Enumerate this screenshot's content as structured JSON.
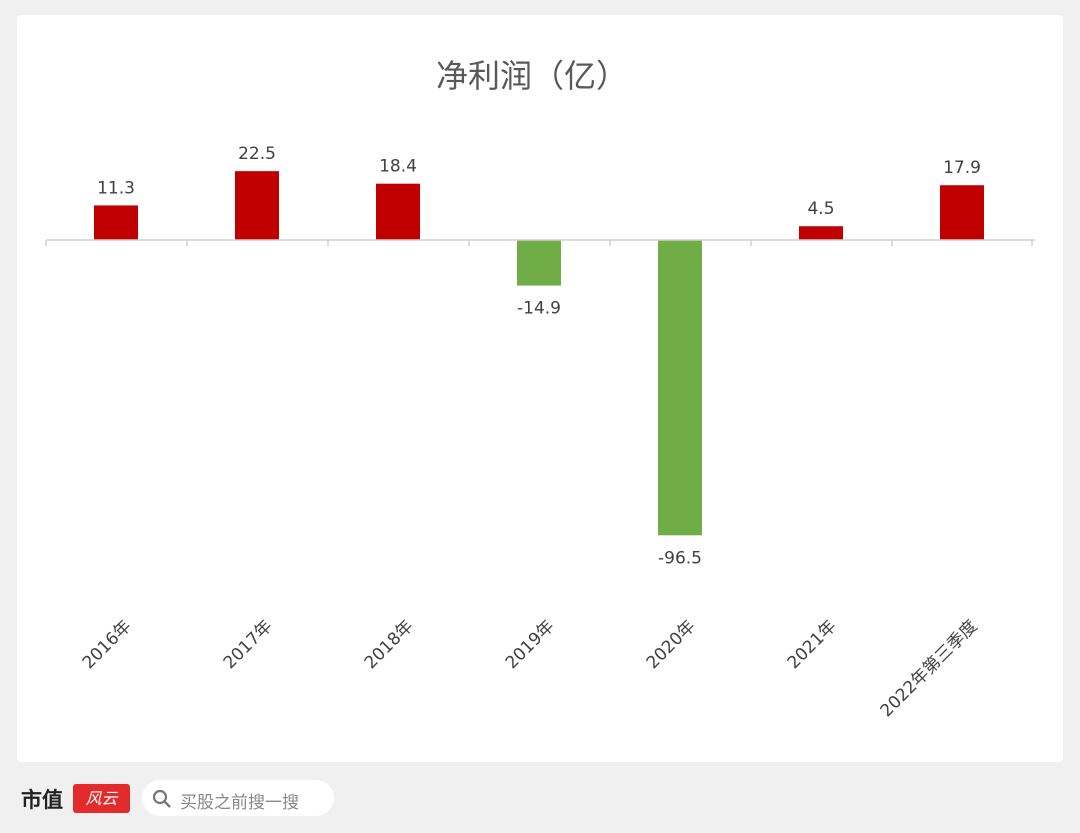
{
  "chart_data": {
    "type": "bar",
    "title": "净利润（亿）",
    "categories": [
      "2016年",
      "2017年",
      "2018年",
      "2019年",
      "2020年",
      "2021年",
      "2022年第三季度"
    ],
    "values": [
      11.3,
      22.5,
      18.4,
      -14.9,
      -96.5,
      4.5,
      17.9
    ],
    "data_labels": [
      "11.3",
      "22.5",
      "18.4",
      "-14.9",
      "-96.5",
      "4.5",
      "17.9"
    ],
    "colors": {
      "positive": "#c00000",
      "negative": "#70ad47"
    },
    "ylim": [
      -100,
      30
    ],
    "grid": false,
    "legend": "none"
  },
  "watermark": "市值风云",
  "footer": {
    "logo": "市值风云",
    "search_placeholder": "买股之前搜一搜",
    "search_icon": "search-icon"
  }
}
